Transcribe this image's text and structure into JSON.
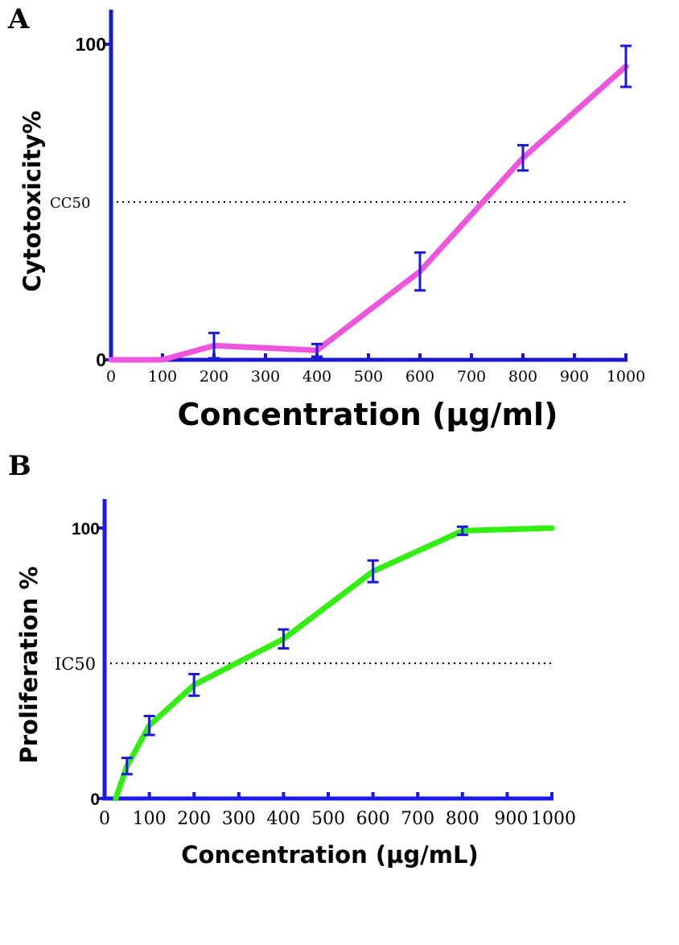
{
  "chart_data": [
    {
      "type": "line",
      "panel_label": "A",
      "xlabel": "Concentration (µg/ml)",
      "ylabel": "Cytotoxicity%",
      "xlim": [
        0,
        1000
      ],
      "ylim": [
        0,
        100
      ],
      "x_ticks": [
        0,
        100,
        200,
        300,
        400,
        500,
        600,
        700,
        800,
        900,
        1000
      ],
      "y_ticks": [
        0,
        100
      ],
      "reference_line": {
        "label": "CC50",
        "y": 50,
        "style": "dotted"
      },
      "line_color": "#ee55dd",
      "errorbar_color": "#1a1adc",
      "axis_color": "#1a1acc",
      "series": [
        {
          "x": [
            0,
            100,
            200,
            400,
            600,
            800,
            1000
          ],
          "y": [
            0,
            0,
            4.5,
            3,
            28,
            64,
            93
          ],
          "error": [
            0,
            0,
            4,
            2,
            6,
            4,
            6.5
          ]
        }
      ]
    },
    {
      "type": "line",
      "panel_label": "B",
      "xlabel": "Concentration (µg/mL)",
      "ylabel": "Proliferation %",
      "xlim": [
        0,
        1000
      ],
      "ylim": [
        0,
        100
      ],
      "x_ticks": [
        0,
        100,
        200,
        300,
        400,
        500,
        600,
        700,
        800,
        900,
        1000
      ],
      "x_tick_labels": [
        "0",
        "100",
        "200",
        "300",
        "400",
        "500",
        "600",
        "700",
        "800",
        "900",
        "1000"
      ],
      "y_ticks": [
        0,
        100
      ],
      "reference_line": {
        "label": "IC50",
        "y": 50,
        "style": "dotted"
      },
      "line_color": "#33ee11",
      "errorbar_color": "#1a1adc",
      "axis_color": "#1a1aee",
      "series": [
        {
          "x": [
            25,
            50,
            100,
            200,
            400,
            600,
            800,
            1000
          ],
          "y": [
            0,
            12,
            27,
            42,
            59,
            84,
            99,
            100
          ],
          "error": [
            0,
            3,
            3.5,
            4,
            3.5,
            4,
            1.5,
            0
          ]
        }
      ]
    }
  ]
}
